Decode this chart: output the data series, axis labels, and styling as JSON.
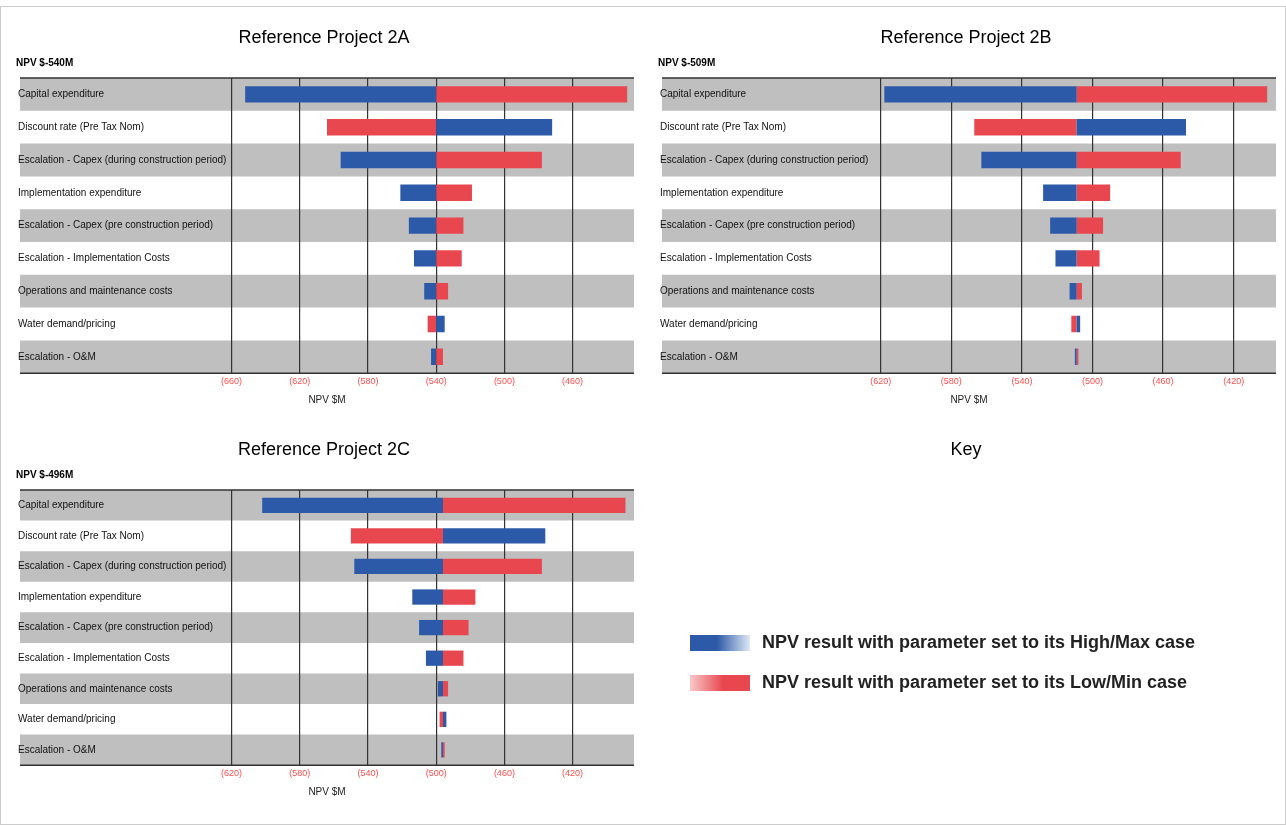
{
  "chart_data": [
    {
      "type": "bar",
      "title": "Reference Project 2A",
      "subtitle": "NPV $-540M",
      "xlabel": "NPV $M",
      "orientation": "horizontal",
      "grid": "x",
      "categories": [
        "Capital expenditure",
        "Discount rate (Pre Tax Nom)",
        "Escalation - Capex (during construction period)",
        "Implementation expenditure",
        "Escalation - Capex (pre construction period)",
        "Escalation - Implementation Costs",
        "Operations and maintenance costs",
        "Water demand/pricing",
        "Escalation - O&M"
      ],
      "series": [
        {
          "color": "#2d5aa8",
          "base": [
            -540,
            -540,
            -540,
            -540,
            -540,
            -540,
            -540,
            -540,
            -540
          ],
          "values": [
            -112,
            68,
            -56,
            -21,
            -16,
            -13,
            -7,
            5,
            -3
          ]
        },
        {
          "color": "#e8474f",
          "base": [
            -540,
            -540,
            -540,
            -540,
            -540,
            -540,
            -540,
            -540,
            -540
          ],
          "values": [
            112,
            -64,
            62,
            21,
            16,
            15,
            7,
            -5,
            4
          ]
        }
      ],
      "xlim": [
        -784,
        -424
      ],
      "xticks": [
        {
          "value": -660,
          "label": "(660)"
        },
        {
          "value": -620,
          "label": "(620)"
        },
        {
          "value": -580,
          "label": "(580)"
        },
        {
          "value": -540,
          "label": "(540)"
        },
        {
          "value": -500,
          "label": "(500)"
        },
        {
          "value": -460,
          "label": "(460)"
        }
      ]
    },
    {
      "type": "bar",
      "title": "Reference Project 2B",
      "subtitle": "NPV $-509M",
      "xlabel": "NPV $M",
      "orientation": "horizontal",
      "grid": "x",
      "categories": [
        "Capital expenditure",
        "Discount rate (Pre Tax Nom)",
        "Escalation - Capex (during construction period)",
        "Implementation expenditure",
        "Escalation - Capex (pre construction period)",
        "Escalation - Implementation Costs",
        "Operations and maintenance costs",
        "Water demand/pricing",
        "Escalation - O&M"
      ],
      "series": [
        {
          "color": "#2d5aa8",
          "base": [
            -509,
            -509,
            -509,
            -509,
            -509,
            -509,
            -509,
            -509,
            -509
          ],
          "values": [
            -109,
            62,
            -54,
            -19,
            -15,
            -12,
            -4,
            2,
            -1
          ]
        },
        {
          "color": "#e8474f",
          "base": [
            -509,
            -509,
            -509,
            -509,
            -509,
            -509,
            -509,
            -509,
            -509
          ],
          "values": [
            108,
            -58,
            59,
            19,
            15,
            13,
            3,
            -3,
            1
          ]
        }
      ],
      "xlim": [
        -744,
        -396
      ],
      "xticks": [
        {
          "value": -620,
          "label": "(620)"
        },
        {
          "value": -580,
          "label": "(580)"
        },
        {
          "value": -540,
          "label": "(540)"
        },
        {
          "value": -500,
          "label": "(500)"
        },
        {
          "value": -460,
          "label": "(460)"
        },
        {
          "value": -420,
          "label": "(420)"
        }
      ]
    },
    {
      "type": "bar",
      "title": "Reference Project 2C",
      "subtitle": "NPV $-496M",
      "xlabel": "NPV $M",
      "orientation": "horizontal",
      "grid": "x",
      "categories": [
        "Capital expenditure",
        "Discount rate (Pre Tax Nom)",
        "Escalation - Capex (during construction period)",
        "Implementation expenditure",
        "Escalation - Capex (pre construction period)",
        "Escalation - Implementation Costs",
        "Operations and maintenance costs",
        "Water demand/pricing",
        "Escalation - O&M"
      ],
      "series": [
        {
          "color": "#2d5aa8",
          "base": [
            -496,
            -496,
            -496,
            -496,
            -496,
            -496,
            -496,
            -496,
            -496
          ],
          "values": [
            -106,
            60,
            -52,
            -18,
            -14,
            -10,
            -3,
            2,
            -1
          ]
        },
        {
          "color": "#e8474f",
          "base": [
            -496,
            -496,
            -496,
            -496,
            -496,
            -496,
            -496,
            -496,
            -496
          ],
          "values": [
            107,
            -54,
            58,
            19,
            15,
            12,
            3,
            -2,
            1
          ]
        }
      ],
      "xlim": [
        -744,
        -384
      ],
      "xticks": [
        {
          "value": -620,
          "label": "(620)"
        },
        {
          "value": -580,
          "label": "(580)"
        },
        {
          "value": -540,
          "label": "(540)"
        },
        {
          "value": -500,
          "label": "(500)"
        },
        {
          "value": -460,
          "label": "(460)"
        },
        {
          "value": -420,
          "label": "(420)"
        }
      ]
    },
    {
      "type": "other",
      "title": "Key",
      "annotations": [
        "NPV result with parameter set to its High/Max case",
        "NPV result with parameter set to its Low/Min case"
      ]
    }
  ]
}
